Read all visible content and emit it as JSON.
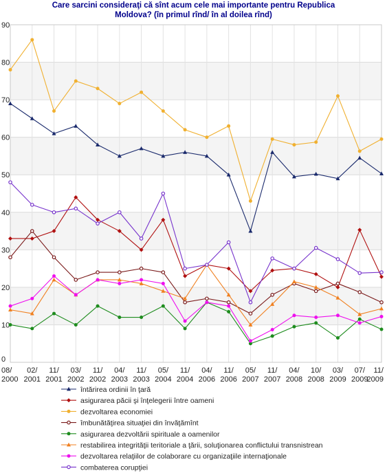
{
  "chart_data": {
    "type": "line",
    "title_lines": [
      "Care sarcini consideraţi că sînt acum cele mai importante pentru Republica",
      "Moldova? (în primul rînd/ în al doilea rînd)"
    ],
    "xlabel": "",
    "ylabel": "",
    "ylim": [
      0,
      90
    ],
    "y_ticks": [
      0,
      10,
      20,
      30,
      40,
      50,
      60,
      70,
      80,
      90
    ],
    "grid": true,
    "legend_position": "bottom",
    "categories": [
      "08/ 2000",
      "02/ 2001",
      "11/ 2001",
      "03/ 2002",
      "11/ 2002",
      "04/ 2003",
      "11/ 2003",
      "05/ 2004",
      "11/ 2004",
      "04/ 2006",
      "11/ 2006",
      "05/ 2007",
      "11/ 2007",
      "04/ 2008",
      "10/ 2008",
      "03/ 2009",
      "07/ 2009",
      "11/ 2009"
    ],
    "x_tick_labels": [
      [
        "08/",
        "2000"
      ],
      [
        "02/",
        "2001"
      ],
      [
        "11/",
        "2001"
      ],
      [
        "03/",
        "2002"
      ],
      [
        "11/",
        "2002"
      ],
      [
        "04/",
        "2003"
      ],
      [
        "11/",
        "2003"
      ],
      [
        "05/",
        "2004"
      ],
      [
        "11/",
        "2004"
      ],
      [
        "04/",
        "2006"
      ],
      [
        "11/",
        "2006"
      ],
      [
        "05/",
        "2007"
      ],
      [
        "11/",
        "2007"
      ],
      [
        "04/",
        "2008"
      ],
      [
        "10/",
        "2008"
      ],
      [
        "03/",
        "2009"
      ],
      [
        "07/",
        "2009"
      ],
      [
        "11/",
        "2009"
      ]
    ],
    "series": [
      {
        "name": "întărirea ordinii în ţară",
        "color": "#1a2a6c",
        "marker": "triangle",
        "values": [
          69,
          65,
          61,
          63,
          58,
          55,
          57,
          55,
          56,
          55,
          50,
          35,
          56,
          49.5,
          50.2,
          49,
          54.5,
          50.3
        ]
      },
      {
        "name": "asigurarea păcii şi înţelegerii între oameni",
        "color": "#b01010",
        "marker": "diamond",
        "values": [
          33,
          33,
          35,
          44,
          38,
          35,
          30,
          38,
          23,
          26,
          25,
          19,
          24.5,
          25,
          23.5,
          20,
          35.3,
          22.8
        ]
      },
      {
        "name": "dezvoltarea economiei",
        "color": "#f0b030",
        "marker": "circle",
        "values": [
          78,
          86,
          67,
          75,
          73,
          69,
          72,
          67,
          62,
          60,
          63,
          43,
          59.5,
          58,
          58.7,
          71,
          56.3,
          59.5
        ]
      },
      {
        "name": "îmbunătăţirea situaţiei din învăţămînt",
        "color": "#7a1a1a",
        "marker": "circle-open",
        "values": [
          28,
          35,
          28,
          22,
          24,
          24,
          25,
          24,
          16,
          17,
          16,
          13,
          18,
          21,
          19,
          21,
          18.7,
          16
        ]
      },
      {
        "name": "asigurarea dezvoltării spirituale a oamenilor",
        "color": "#1e8c1e",
        "marker": "circle",
        "values": [
          10,
          9,
          13,
          10,
          15,
          12,
          12,
          15,
          9,
          16,
          13.5,
          5,
          7,
          9.5,
          10.5,
          6.5,
          11.5,
          8.8
        ]
      },
      {
        "name": "restabilirea integrităţii teritoriale a ţării, soluţionarea conflictului transnistrean",
        "color": "#f08020",
        "marker": "triangle",
        "values": [
          14,
          13,
          22,
          18,
          22,
          22,
          21,
          19,
          17,
          26,
          18,
          10,
          15.5,
          21.5,
          20,
          17.2,
          12.8,
          14.3
        ]
      },
      {
        "name": "dezvoltarea relaţiilor de colaborare cu organizaţiile internaţionale",
        "color": "#ee10ee",
        "marker": "circle",
        "values": [
          15,
          17,
          23,
          18,
          22,
          21,
          22,
          21,
          11,
          16,
          15,
          5.7,
          8.7,
          12.5,
          12,
          12.5,
          10.5,
          12.2
        ]
      },
      {
        "name": "combaterea corupţiei",
        "color": "#7733cc",
        "marker": "circle-open",
        "values": [
          48,
          42,
          40,
          41,
          37,
          40,
          33,
          45,
          25,
          26,
          32,
          16,
          27.7,
          25,
          30.5,
          27.5,
          23.8,
          24
        ]
      }
    ]
  }
}
